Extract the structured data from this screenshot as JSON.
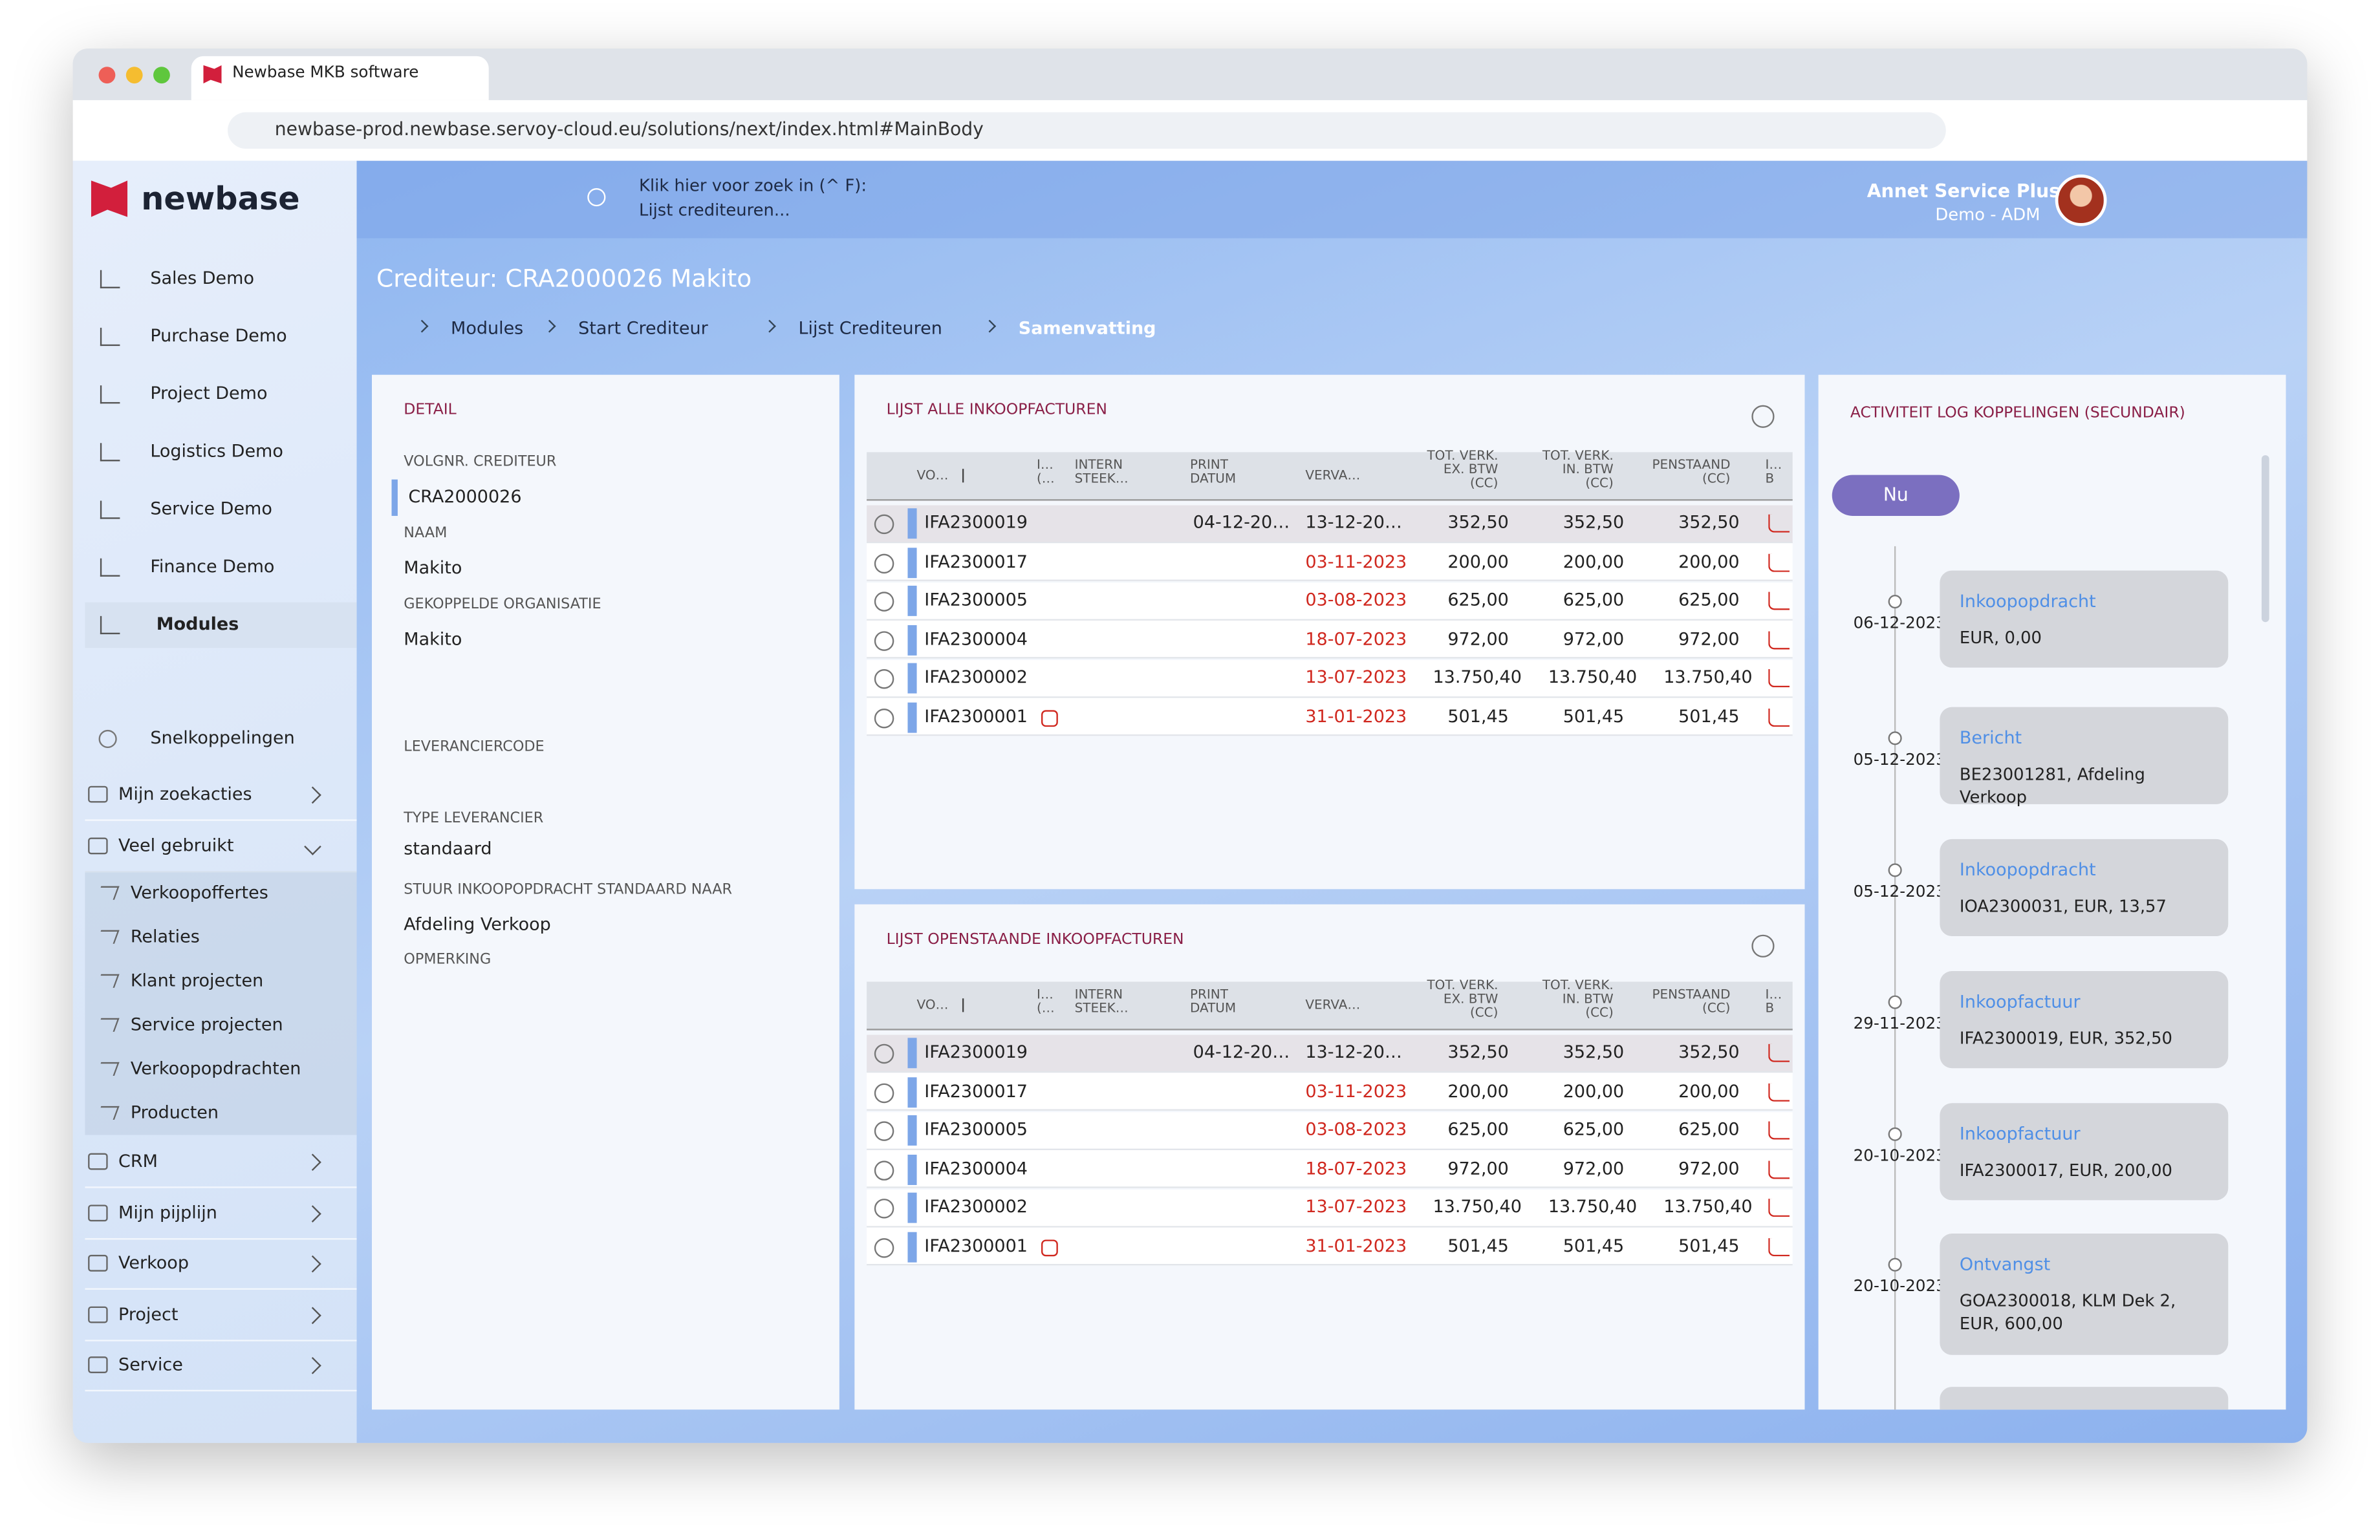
{
  "browser": {
    "tab_title": "Newbase MKB software",
    "url": "newbase-prod.newbase.servoy-cloud.eu/solutions/next/index.html#MainBody"
  },
  "sidebar": {
    "logo": "newbase",
    "modules": [
      "Sales Demo",
      "Purchase Demo",
      "Project Demo",
      "Logistics Demo",
      "Service Demo",
      "Finance Demo",
      "Modules"
    ],
    "shortcuts_title": "Snelkoppelingen",
    "folders": [
      {
        "label": "Mijn zoekacties"
      },
      {
        "label": "Veel gebruikt",
        "items": [
          "Verkoopoffertes",
          "Relaties",
          "Klant projecten",
          "Service projecten",
          "Verkoopopdrachten",
          "Producten"
        ]
      },
      {
        "label": "CRM"
      },
      {
        "label": "Mijn pijplijn"
      },
      {
        "label": "Verkoop"
      },
      {
        "label": "Project"
      },
      {
        "label": "Service"
      }
    ]
  },
  "topbar": {
    "search_hint": "Klik hier voor zoek in (^ F):",
    "search_context": "Lijst crediteuren...",
    "user_name": "Annet Service Plus",
    "user_role": "Demo - ADM"
  },
  "page": {
    "title": "Crediteur: CRA2000026 Makito",
    "breadcrumb": [
      "Modules",
      "Start Crediteur",
      "Lijst Crediteuren",
      "Samenvatting"
    ]
  },
  "detail": {
    "title": "DETAIL",
    "fields": [
      {
        "label": "VOLGNR. CREDITEUR",
        "value": "CRA2000026"
      },
      {
        "label": "NAAM",
        "value": "Makito"
      },
      {
        "label": "GEKOPPELDE ORGANISATIE",
        "value": "Makito"
      },
      {
        "label": "LEVERANCIERCODE"
      },
      {
        "label": "TYPE LEVERANCIER",
        "value": "standaard"
      },
      {
        "label": "STUUR INKOOPOPDRACHT STANDAARD NAAR",
        "value": "Afdeling Verkoop"
      },
      {
        "label": "OPMERKING"
      }
    ]
  },
  "tables": [
    {
      "title": "LIJST ALLE INKOOPFACTUREN",
      "columns": [
        "VO…",
        "I…\n(…",
        "INTERN\nSTEEK…",
        "PRINT\nDATUM",
        "VERVA…",
        "TOT. VERK.\nEX. BTW\n(CC)",
        "TOT. VERK.\nIN. BTW\n(CC)",
        "PENSTAAND\n(CC)",
        "I…\nB"
      ],
      "rows": [
        [
          "IFA2300019",
          "04-12-20…",
          "13-12-20…",
          "352,50",
          "352,50",
          "352,50"
        ],
        [
          "IFA2300017",
          null,
          "03-11-2023",
          "200,00",
          "200,00",
          "200,00"
        ],
        [
          "IFA2300005",
          null,
          "03-08-2023",
          "625,00",
          "625,00",
          "625,00"
        ],
        [
          "IFA2300004",
          null,
          "18-07-2023",
          "972,00",
          "972,00",
          "972,00"
        ],
        [
          "IFA2300002",
          null,
          "13-07-2023",
          "13.750,40",
          "13.750,40",
          "13.750,40"
        ],
        [
          "IFA2300001",
          null,
          "31-01-2023",
          "501,45",
          "501,45",
          "501,45"
        ]
      ]
    },
    {
      "title": "LIJST OPENSTAANDE INKOOPFACTUREN",
      "columns": [
        "VO…",
        "I…\n(…",
        "INTERN\nSTEEK…",
        "PRINT\nDATUM",
        "VERVA…",
        "TOT. VERK.\nEX. BTW\n(CC)",
        "TOT. VERK.\nIN. BTW\n(CC)",
        "PENSTAAND\n(CC)",
        "I…\nB"
      ],
      "rows": [
        [
          "IFA2300019",
          "04-12-20…",
          "13-12-20…",
          "352,50",
          "352,50",
          "352,50"
        ],
        [
          "IFA2300017",
          null,
          "03-11-2023",
          "200,00",
          "200,00",
          "200,00"
        ],
        [
          "IFA2300005",
          null,
          "03-08-2023",
          "625,00",
          "625,00",
          "625,00"
        ],
        [
          "IFA2300004",
          null,
          "18-07-2023",
          "972,00",
          "972,00",
          "972,00"
        ],
        [
          "IFA2300002",
          null,
          "13-07-2023",
          "13.750,40",
          "13.750,40",
          "13.750,40"
        ],
        [
          "IFA2300001",
          null,
          "31-01-2023",
          "501,45",
          "501,45",
          "501,45"
        ]
      ]
    }
  ],
  "activity": {
    "title": "ACTIVITEIT LOG KOPPELINGEN (SECUNDAIR)",
    "now": "Nu",
    "entries": [
      {
        "date": "06-12-2023",
        "title": "Inkoopopdracht",
        "text": "EUR, 0,00"
      },
      {
        "date": "05-12-2023",
        "title": "Bericht",
        "text": "BE23001281, Afdeling Verkoop"
      },
      {
        "date": "05-12-2023",
        "title": "Inkoopopdracht",
        "text": "IOA2300031, EUR, 13,57"
      },
      {
        "date": "29-11-2023",
        "title": "Inkoopfactuur",
        "text": "IFA2300019, EUR, 352,50"
      },
      {
        "date": "20-10-2023",
        "title": "Inkoopfactuur",
        "text": "IFA2300017, EUR, 200,00"
      },
      {
        "date": "20-10-2023",
        "title": "Ontvangst",
        "text": "GOA2300018, KLM Dek 2, EUR, 600,00"
      }
    ]
  }
}
